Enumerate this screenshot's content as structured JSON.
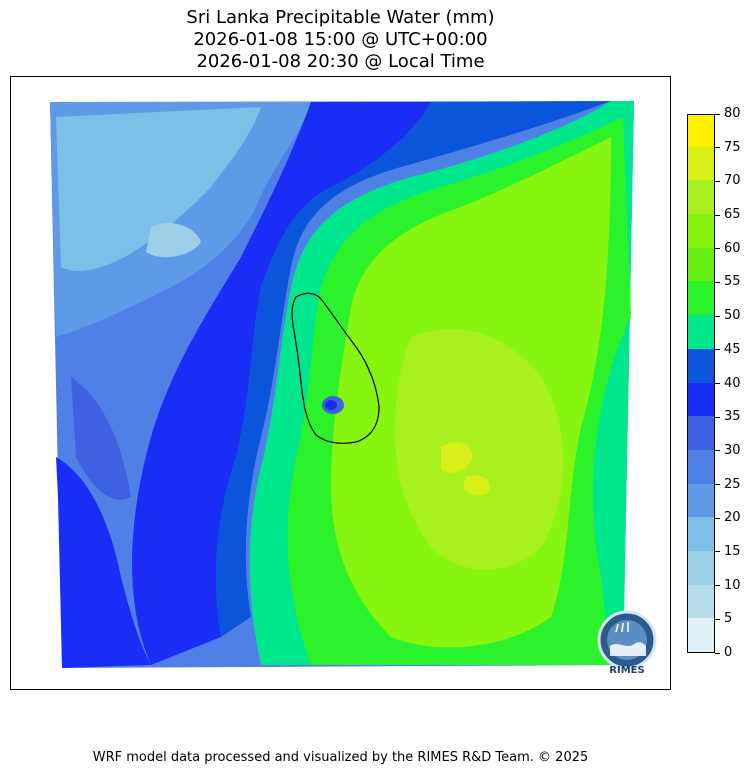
{
  "title": {
    "line1": "Sri Lanka Precipitable Water (mm)",
    "line2": "2026-01-08 15:00 @ UTC+00:00",
    "line3": "2026-01-08 20:30 @ Local Time"
  },
  "colorbar": {
    "ticks": [
      "0",
      "5",
      "10",
      "15",
      "20",
      "25",
      "30",
      "35",
      "40",
      "45",
      "50",
      "55",
      "60",
      "65",
      "70",
      "75",
      "80"
    ],
    "colors": [
      "#e0f0f8",
      "#b6dcea",
      "#9cd0e6",
      "#7dbfe6",
      "#5f9ae6",
      "#4f80e6",
      "#3e62df",
      "#1a2df5",
      "#0a55d9",
      "#00e68c",
      "#2cf22c",
      "#66ee12",
      "#88f510",
      "#a8f020",
      "#d8f018",
      "#fff000"
    ],
    "top_color": "#ffd000"
  },
  "logo": {
    "text": "RIMES"
  },
  "credit": "WRF model data processed and visualized by the RIMES R&D Team. © 2025"
}
